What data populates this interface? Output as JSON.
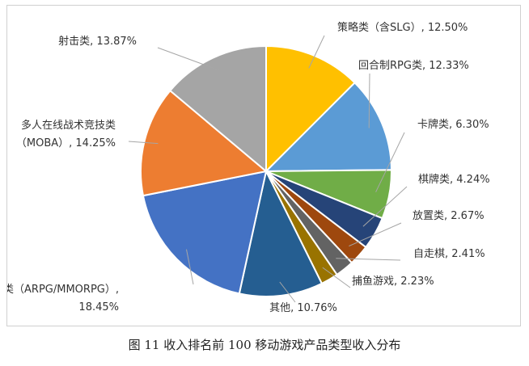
{
  "caption": "图 11 收入排名前 100 移动游戏产品类型收入分布",
  "chart_data": {
    "type": "pie",
    "start": "12 o'clock",
    "direction": "clockwise",
    "legend": "none",
    "slices": [
      {
        "name": "策略类（含SLG）",
        "value": 12.5,
        "label": [
          "策略类（含SLG）, 12.50%"
        ],
        "color": "#ffc000"
      },
      {
        "name": "回合制RPG类",
        "value": 12.33,
        "label": [
          "回合制RPG类, 12.33%"
        ],
        "color": "#5b9bd5"
      },
      {
        "name": "卡牌类",
        "value": 6.3,
        "label": [
          "卡牌类, 6.30%"
        ],
        "color": "#70ad47"
      },
      {
        "name": "棋牌类",
        "value": 4.24,
        "label": [
          "棋牌类, 4.24%"
        ],
        "color": "#264478"
      },
      {
        "name": "放置类",
        "value": 2.67,
        "label": [
          "放置类, 2.67%"
        ],
        "color": "#9e480e"
      },
      {
        "name": "自走棋",
        "value": 2.41,
        "label": [
          "自走棋, 2.41%"
        ],
        "color": "#636363"
      },
      {
        "name": "捕鱼游戏",
        "value": 2.23,
        "label": [
          "捕鱼游戏, 2.23%"
        ],
        "color": "#997300"
      },
      {
        "name": "其他",
        "value": 10.76,
        "label": [
          "其他, 10.76%"
        ],
        "color": "#255e91"
      },
      {
        "name": "角色扮演类（ARPG/MMORPG）",
        "value": 18.45,
        "label": [
          "角色扮演类（ARPG/MMORPG）,",
          "18.45%"
        ],
        "color": "#4472c4"
      },
      {
        "name": "多人在线战术竞技类（MOBA）",
        "value": 14.25,
        "label": [
          "多人在线战术竞技类",
          "（MOBA）, 14.25%"
        ],
        "color": "#ed7d31"
      },
      {
        "name": "射击类",
        "value": 13.87,
        "label": [
          "射击类, 13.87%"
        ],
        "color": "#a5a5a5"
      }
    ]
  }
}
